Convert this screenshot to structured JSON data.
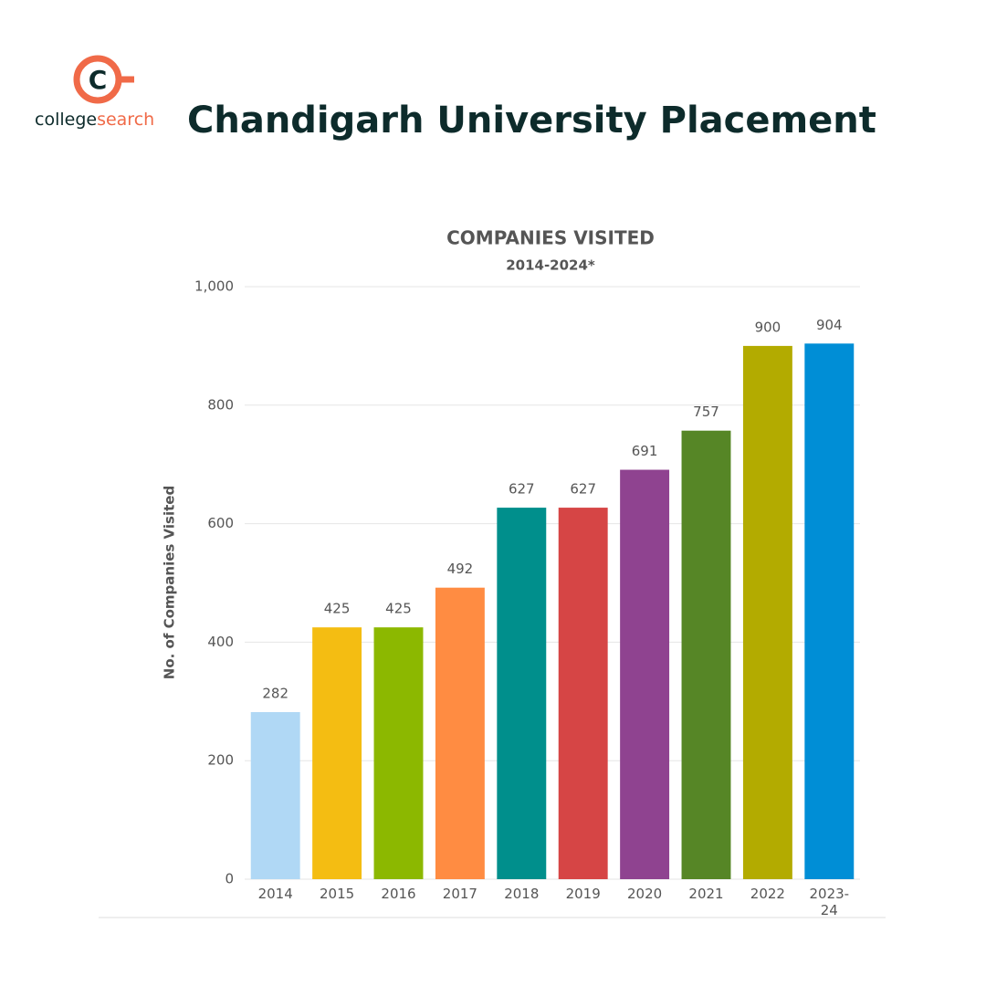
{
  "header": {
    "logo_mark": "C",
    "logo_text_1": "college",
    "logo_text_2": "search",
    "title": "Chandigarh University Placement"
  },
  "chart_data": {
    "type": "bar",
    "title": "COMPANIES VISITED",
    "subtitle": "2014-2024*",
    "y_label": "No. of Companies Visited",
    "categories": [
      "2014",
      "2015",
      "2016",
      "2017",
      "2018",
      "2019",
      "2020",
      "2021",
      "2022",
      "2023-24"
    ],
    "values": [
      282,
      425,
      425,
      492,
      627,
      627,
      691,
      757,
      900,
      904
    ],
    "colors": [
      "#b0d8f5",
      "#f4bd12",
      "#8cb800",
      "#ff8c42",
      "#008f8c",
      "#d64545",
      "#8f4390",
      "#568626",
      "#b3ab00",
      "#008ed6"
    ],
    "ylim": [
      0,
      1000
    ],
    "yticks": [
      0,
      200,
      400,
      600,
      800,
      {
        "value": 1000,
        "label": "1,000"
      }
    ],
    "grid": true
  }
}
